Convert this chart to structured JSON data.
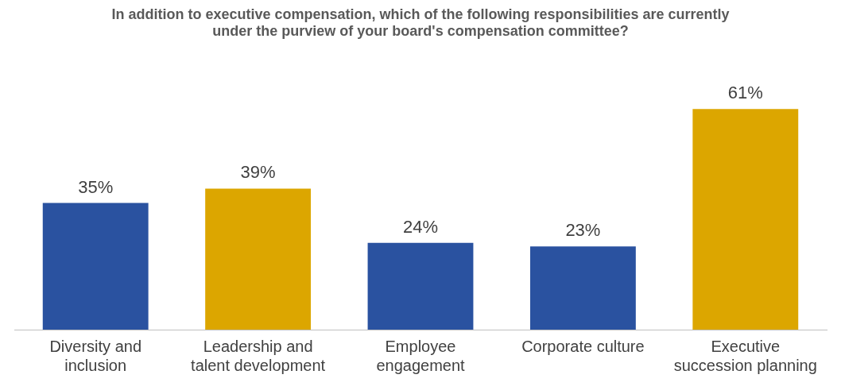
{
  "chart_data": {
    "type": "bar",
    "title": "In addition to executive compensation, which of the following responsibilities are currently under the purview of your board's compensation committee?",
    "categories": [
      "Diversity and inclusion",
      "Leadership and talent development",
      "Employee engagement",
      "Corporate culture",
      "Executive succession planning"
    ],
    "values": [
      35,
      39,
      24,
      23,
      61
    ],
    "colors": [
      "#2a52a0",
      "#dca600",
      "#2a52a0",
      "#2a52a0",
      "#dca600"
    ],
    "value_labels": [
      "35%",
      "39%",
      "24%",
      "23%",
      "61%"
    ],
    "grid": false,
    "legend": false
  }
}
